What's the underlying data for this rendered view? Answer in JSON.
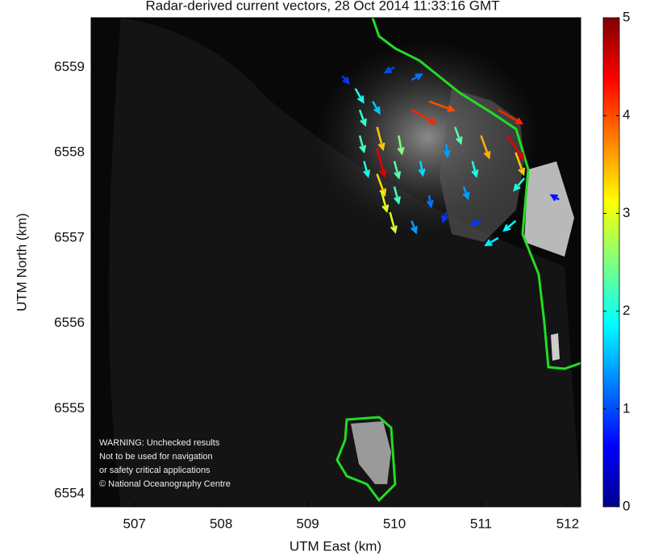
{
  "chart_data": {
    "type": "quiver",
    "title": "Radar-derived current vectors, 28 Oct 2014 11:33:16 GMT",
    "xlabel": "UTM East (km)",
    "ylabel": "UTM North (km)",
    "xlim": [
      506.5,
      512.15
    ],
    "xticks": [
      507,
      508,
      509,
      510,
      511,
      512
    ],
    "ylim": [
      6553.85,
      6559.58
    ],
    "yticks": [
      6554,
      6555,
      6556,
      6557,
      6558,
      6559
    ],
    "colormap": "jet",
    "clim": [
      0,
      5
    ],
    "cticks": [
      0,
      1,
      2,
      3,
      4,
      5
    ],
    "annotation": [
      "WARNING: Unchecked results",
      "Not to be used for navigation",
      "or safety critical applications",
      "© National Oceanography Centre"
    ],
    "vectors": {
      "x": [
        509.55,
        509.6,
        509.6,
        509.65,
        509.75,
        509.8,
        509.8,
        509.8,
        509.85,
        509.95,
        510.0,
        510.0,
        510.05,
        510.2,
        510.4,
        510.3,
        510.2,
        510.4,
        510.6,
        510.8,
        510.9,
        511.0,
        511.2,
        511.3,
        511.4,
        511.5,
        511.2,
        511.4,
        510.6,
        510.2,
        510.0,
        509.4,
        511.9,
        511.0,
        510.7
      ],
      "y": [
        6558.75,
        6558.5,
        6558.2,
        6557.9,
        6558.6,
        6558.3,
        6558.05,
        6557.75,
        6557.55,
        6557.3,
        6557.6,
        6557.9,
        6558.2,
        6558.5,
        6558.6,
        6557.9,
        6557.2,
        6557.5,
        6557.3,
        6557.6,
        6557.9,
        6558.2,
        6558.5,
        6558.2,
        6558.0,
        6557.7,
        6557.0,
        6557.2,
        6558.1,
        6558.85,
        6559.0,
        6558.9,
        6557.45,
        6557.2,
        6558.3
      ],
      "speed": [
        2.0,
        2.1,
        2.2,
        2.0,
        1.6,
        3.4,
        4.5,
        3.3,
        3.0,
        2.9,
        2.2,
        2.3,
        2.5,
        4.2,
        4.0,
        1.7,
        1.4,
        1.2,
        0.9,
        1.4,
        2.0,
        3.5,
        4.2,
        4.5,
        3.4,
        2.0,
        1.8,
        1.9,
        1.4,
        1.2,
        1.0,
        0.9,
        0.7,
        0.9,
        2.3
      ],
      "direction": [
        150,
        160,
        165,
        165,
        150,
        165,
        165,
        160,
        165,
        165,
        165,
        165,
        170,
        120,
        110,
        170,
        160,
        170,
        200,
        160,
        165,
        160,
        120,
        145,
        160,
        220,
        240,
        230,
        175,
        60,
        240,
        140,
        300,
        250,
        160
      ]
    }
  }
}
